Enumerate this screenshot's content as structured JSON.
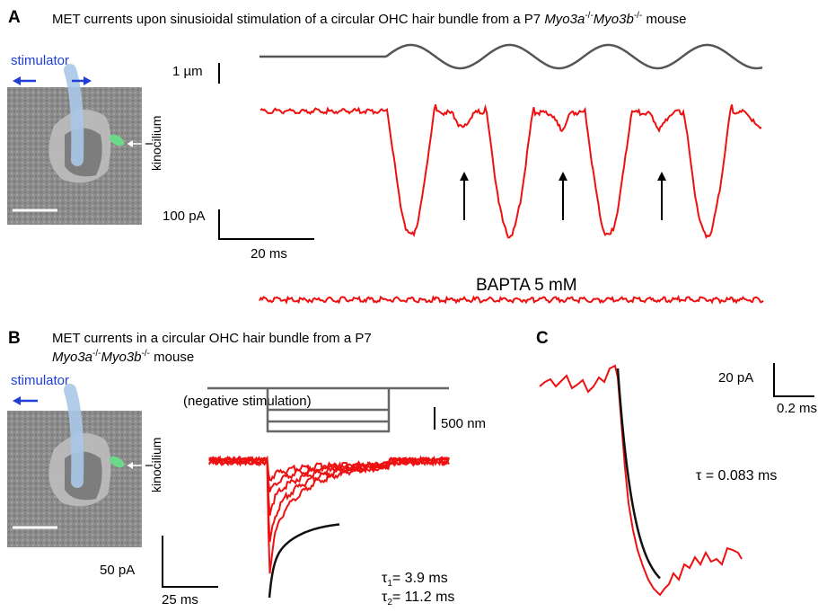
{
  "panelA": {
    "label": "A",
    "title": "MET currents upon sinusioidal stimulation of a circular OHC hair bundle from a P7 ",
    "genotype": {
      "a": "Myo3a",
      "a_sup": "-/-",
      "b": "Myo3b",
      "b_sup": "-/-"
    },
    "title_tail": " mouse",
    "stimulator_label": "stimulator",
    "kinocilium_label": "kinocilium",
    "scale_disp": "1 µm",
    "scale_current": "100 pA",
    "scale_time": "20 ms",
    "bapta_label": "BAPTA 5 mM"
  },
  "panelB": {
    "label": "B",
    "title_line1": "MET currents in a circular OHC hair bundle from a P7",
    "genotype": {
      "a": "Myo3a",
      "a_sup": "-/-",
      "b": "Myo3b",
      "b_sup": "-/-"
    },
    "title_tail": " mouse",
    "stimulator_label": "stimulator",
    "kinocilium_label": "kinocilium",
    "neg_stim_label": "(negative stimulation)",
    "scale_disp": "500 nm",
    "scale_current": "50 pA",
    "scale_time": "25 ms",
    "tau1_sym": "τ",
    "tau1_sub": "1",
    "tau1_val": "= 3.9 ms",
    "tau2_sym": "τ",
    "tau2_sub": "2",
    "tau2_val": "= 11.2 ms"
  },
  "panelC": {
    "label": "C",
    "scale_current": "20 pA",
    "scale_time": "0.2 ms",
    "tau_text": "τ = 0.083 ms"
  },
  "colors": {
    "trace": "#ee1111",
    "stim_trace": "#555555",
    "fit": "#111111",
    "arrow_blue": "#1f3fd8",
    "probe": "#a9c8e8",
    "kinocilium": "#6cd98a"
  }
}
